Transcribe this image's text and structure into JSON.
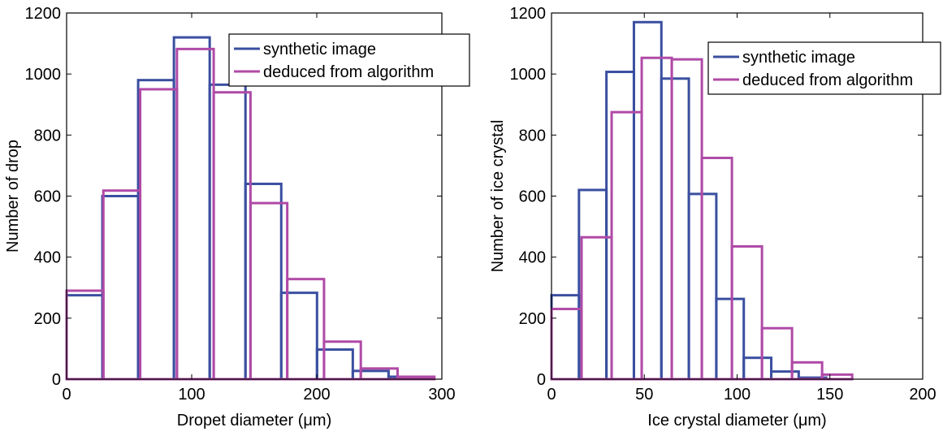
{
  "chart_data": [
    {
      "type": "histogram",
      "xlabel": "Dropet diameter (μm)",
      "ylabel": "Number of drop",
      "xlim": [
        0,
        300
      ],
      "ylim": [
        0,
        1200
      ],
      "xticks": [
        0,
        100,
        200,
        300
      ],
      "yticks": [
        0,
        200,
        400,
        600,
        800,
        1000,
        1200
      ],
      "grid": false,
      "legend_position": "top-right",
      "series": [
        {
          "name": "synthetic image",
          "color": "#3a4fa0",
          "bin_edges": [
            0,
            28.6,
            57.2,
            85.8,
            114.4,
            143,
            171.6,
            200.2,
            228.8,
            257.4,
            286
          ],
          "counts": [
            275,
            600,
            980,
            1120,
            965,
            640,
            283,
            97,
            27,
            8
          ]
        },
        {
          "name": "deduced from algorithm",
          "color": "#b04aa7",
          "bin_edges": [
            0,
            29.4,
            58.8,
            88.2,
            117.6,
            147,
            176.4,
            205.8,
            235.2,
            264.6,
            294
          ],
          "counts": [
            290,
            618,
            950,
            1082,
            940,
            577,
            328,
            123,
            35,
            8
          ]
        }
      ]
    },
    {
      "type": "histogram",
      "xlabel": "Ice crystal diameter (μm)",
      "ylabel": "Number of ice crystal",
      "xlim": [
        0,
        200
      ],
      "ylim": [
        0,
        1200
      ],
      "xticks": [
        0,
        50,
        100,
        150,
        200
      ],
      "yticks": [
        0,
        200,
        400,
        600,
        800,
        1000,
        1200
      ],
      "grid": false,
      "legend_position": "top-right",
      "series": [
        {
          "name": "synthetic image",
          "color": "#3a4fa0",
          "bin_edges": [
            0,
            14.8,
            29.6,
            44.4,
            59.2,
            74,
            88.8,
            103.6,
            118.4,
            133.2,
            148
          ],
          "counts": [
            275,
            620,
            1007,
            1170,
            985,
            607,
            263,
            70,
            25,
            5
          ]
        },
        {
          "name": "deduced from algorithm",
          "color": "#b04aa7",
          "bin_edges": [
            0,
            16.2,
            32.4,
            48.6,
            64.8,
            81,
            97.2,
            113.4,
            129.6,
            145.8,
            162
          ],
          "counts": [
            230,
            465,
            875,
            1053,
            1048,
            725,
            435,
            167,
            55,
            15
          ]
        }
      ]
    }
  ]
}
